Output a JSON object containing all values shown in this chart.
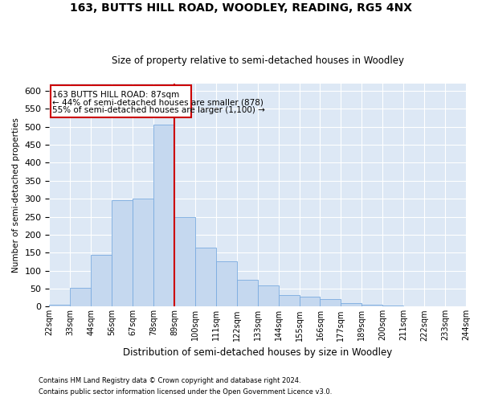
{
  "title": "163, BUTTS HILL ROAD, WOODLEY, READING, RG5 4NX",
  "subtitle": "Size of property relative to semi-detached houses in Woodley",
  "xlabel": "Distribution of semi-detached houses by size in Woodley",
  "ylabel": "Number of semi-detached properties",
  "categories": [
    "22sqm",
    "33sqm",
    "44sqm",
    "56sqm",
    "67sqm",
    "78sqm",
    "89sqm",
    "100sqm",
    "111sqm",
    "122sqm",
    "133sqm",
    "144sqm",
    "155sqm",
    "166sqm",
    "177sqm",
    "189sqm",
    "200sqm",
    "211sqm",
    "222sqm",
    "233sqm",
    "244sqm"
  ],
  "bar_values": [
    5,
    52,
    145,
    295,
    300,
    505,
    250,
    165,
    125,
    75,
    60,
    33,
    27,
    22,
    10,
    5,
    2,
    1,
    0,
    1
  ],
  "bar_color": "#c5d8ef",
  "bar_edge_color": "#7aabe0",
  "vline_bin": 5,
  "vline_color": "#cc0000",
  "annotation_title": "163 BUTTS HILL ROAD: 87sqm",
  "annotation_line1": "← 44% of semi-detached houses are smaller (878)",
  "annotation_line2": "55% of semi-detached houses are larger (1,100) →",
  "annotation_box_color": "#cc0000",
  "ylim": [
    0,
    620
  ],
  "yticks": [
    0,
    50,
    100,
    150,
    200,
    250,
    300,
    350,
    400,
    450,
    500,
    550,
    600
  ],
  "footnote1": "Contains HM Land Registry data © Crown copyright and database right 2024.",
  "footnote2": "Contains public sector information licensed under the Open Government Licence v3.0.",
  "plot_background": "#dde8f5"
}
